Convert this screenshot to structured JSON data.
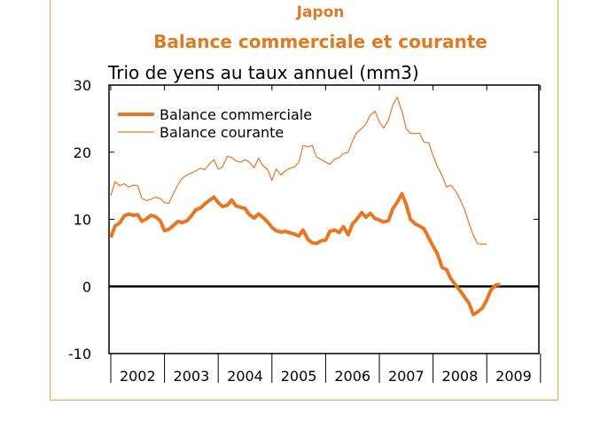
{
  "chart_data": {
    "type": "line",
    "title": "Japon",
    "subtitle": "Balance commerciale et courante",
    "ylabel": "Trio de yens au taux annuel (mm3)",
    "xlabel": "",
    "ylim": [
      -10,
      30
    ],
    "yticks": [
      "30",
      "20",
      "10",
      "0",
      "-10"
    ],
    "xlim": [
      2002,
      2010
    ],
    "year_labels": [
      "2002",
      "2003",
      "2004",
      "2005",
      "2006",
      "2007",
      "2008",
      "2009"
    ],
    "grid": false,
    "legend_position": "top-left",
    "series": [
      {
        "name": "Balance commerciale",
        "color": "#e87722",
        "style": "thick",
        "x": [
          2002.0,
          2002.08,
          2002.17,
          2002.25,
          2002.33,
          2002.42,
          2002.5,
          2002.58,
          2002.67,
          2002.75,
          2002.83,
          2002.92,
          2003.0,
          2003.08,
          2003.17,
          2003.25,
          2003.33,
          2003.42,
          2003.5,
          2003.58,
          2003.67,
          2003.75,
          2003.83,
          2003.92,
          2004.0,
          2004.08,
          2004.17,
          2004.25,
          2004.33,
          2004.42,
          2004.5,
          2004.58,
          2004.67,
          2004.75,
          2004.83,
          2004.92,
          2005.0,
          2005.08,
          2005.17,
          2005.25,
          2005.33,
          2005.42,
          2005.5,
          2005.58,
          2005.67,
          2005.75,
          2005.83,
          2005.92,
          2006.0,
          2006.08,
          2006.17,
          2006.25,
          2006.33,
          2006.42,
          2006.5,
          2006.58,
          2006.67,
          2006.75,
          2006.83,
          2006.92,
          2007.0,
          2007.08,
          2007.17,
          2007.25,
          2007.33,
          2007.42,
          2007.5,
          2007.58,
          2007.67,
          2007.75,
          2007.83,
          2007.92,
          2008.0,
          2008.08,
          2008.17,
          2008.25,
          2008.33,
          2008.42,
          2008.5,
          2008.58,
          2008.67,
          2008.75,
          2008.83,
          2008.92,
          2009.0,
          2009.08,
          2009.17,
          2009.25
        ],
        "values": [
          7.3,
          9.0,
          9.5,
          10.5,
          10.8,
          10.6,
          10.7,
          9.7,
          10.1,
          10.6,
          10.4,
          9.8,
          8.3,
          8.5,
          9.1,
          9.7,
          9.5,
          9.8,
          10.5,
          11.4,
          11.7,
          12.3,
          12.8,
          13.3,
          12.5,
          11.9,
          12.1,
          12.9,
          12.0,
          11.8,
          11.6,
          10.7,
          10.2,
          10.8,
          10.3,
          9.6,
          8.8,
          8.3,
          8.1,
          8.2,
          8.0,
          7.8,
          7.5,
          8.4,
          7.0,
          6.5,
          6.4,
          6.8,
          6.9,
          8.2,
          8.4,
          8.0,
          8.9,
          7.7,
          9.3,
          10.0,
          11.0,
          10.3,
          10.9,
          10.1,
          9.9,
          9.6,
          9.8,
          11.6,
          12.5,
          13.8,
          12.2,
          10.0,
          9.3,
          9.0,
          8.6,
          7.2,
          6.0,
          4.9,
          2.8,
          2.5,
          1.2,
          0.2,
          -0.6,
          -1.5,
          -2.5,
          -4.2,
          -3.8,
          -3.2,
          -2.0,
          -0.5,
          0.2,
          0.3
        ]
      },
      {
        "name": "Balance courante",
        "color": "#e87722",
        "style": "thin",
        "x": [
          2002.0,
          2002.08,
          2002.17,
          2002.25,
          2002.33,
          2002.42,
          2002.5,
          2002.58,
          2002.67,
          2002.75,
          2002.83,
          2002.92,
          2003.0,
          2003.08,
          2003.17,
          2003.25,
          2003.33,
          2003.42,
          2003.5,
          2003.58,
          2003.67,
          2003.75,
          2003.83,
          2003.92,
          2004.0,
          2004.08,
          2004.17,
          2004.25,
          2004.33,
          2004.42,
          2004.5,
          2004.58,
          2004.67,
          2004.75,
          2004.83,
          2004.92,
          2005.0,
          2005.08,
          2005.17,
          2005.25,
          2005.33,
          2005.42,
          2005.5,
          2005.58,
          2005.67,
          2005.75,
          2005.83,
          2005.92,
          2006.0,
          2006.08,
          2006.17,
          2006.25,
          2006.33,
          2006.42,
          2006.5,
          2006.58,
          2006.67,
          2006.75,
          2006.83,
          2006.92,
          2007.0,
          2007.08,
          2007.17,
          2007.25,
          2007.33,
          2007.42,
          2007.5,
          2007.58,
          2007.67,
          2007.75,
          2007.83,
          2007.92,
          2008.0,
          2008.08,
          2008.17,
          2008.25,
          2008.33,
          2008.42,
          2008.5,
          2008.58,
          2008.67,
          2008.75,
          2008.83,
          2008.92,
          2009.0
        ],
        "values": [
          13.5,
          15.6,
          15.0,
          15.3,
          14.8,
          15.1,
          15.0,
          13.1,
          12.8,
          13.0,
          13.3,
          13.1,
          12.5,
          12.4,
          13.9,
          15.2,
          16.1,
          16.6,
          16.9,
          17.2,
          17.6,
          17.4,
          18.2,
          18.9,
          17.5,
          17.8,
          19.4,
          19.2,
          18.7,
          18.5,
          18.9,
          18.5,
          17.7,
          19.1,
          18.0,
          17.4,
          15.8,
          17.5,
          16.6,
          17.2,
          17.6,
          17.8,
          18.5,
          21.0,
          20.8,
          21.0,
          19.3,
          18.9,
          18.5,
          18.2,
          19.0,
          19.2,
          19.8,
          20.0,
          21.7,
          22.9,
          23.5,
          24.2,
          25.5,
          26.1,
          24.5,
          23.6,
          24.8,
          27.0,
          28.2,
          26.1,
          23.5,
          22.8,
          22.8,
          22.8,
          21.5,
          21.4,
          19.5,
          17.9,
          16.5,
          14.8,
          15.1,
          14.2,
          13.0,
          11.6,
          9.4,
          7.6,
          6.4,
          6.3,
          6.3
        ]
      }
    ]
  }
}
